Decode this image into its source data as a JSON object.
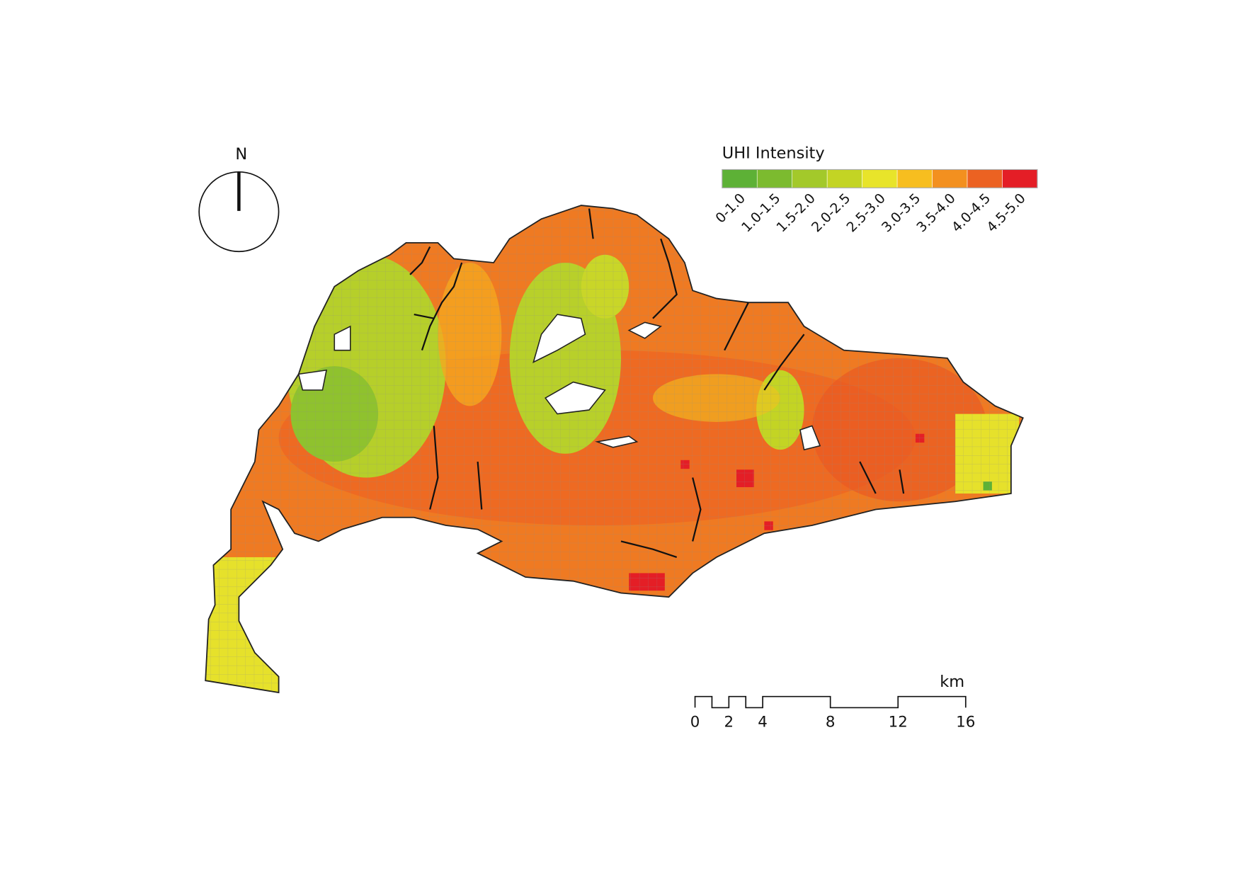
{
  "north_arrow": {
    "label": "N"
  },
  "legend": {
    "title": "UHI Intensity",
    "items": [
      {
        "label": "0-1.0",
        "color": "#5db136"
      },
      {
        "label": "1.0-1.5",
        "color": "#7cbb2f"
      },
      {
        "label": "1.5-2.0",
        "color": "#a3c92a"
      },
      {
        "label": "2.0-2.5",
        "color": "#c3d424"
      },
      {
        "label": "2.5-3.0",
        "color": "#e8e42a"
      },
      {
        "label": "3.0-3.5",
        "color": "#f7be1f"
      },
      {
        "label": "3.5-4.0",
        "color": "#f3901f"
      },
      {
        "label": "4.0-4.5",
        "color": "#ec6222"
      },
      {
        "label": "4.5-5.0",
        "color": "#e41e26"
      }
    ]
  },
  "scale_bar": {
    "unit": "km",
    "ticks": [
      0,
      2,
      4,
      8,
      12,
      16
    ]
  }
}
